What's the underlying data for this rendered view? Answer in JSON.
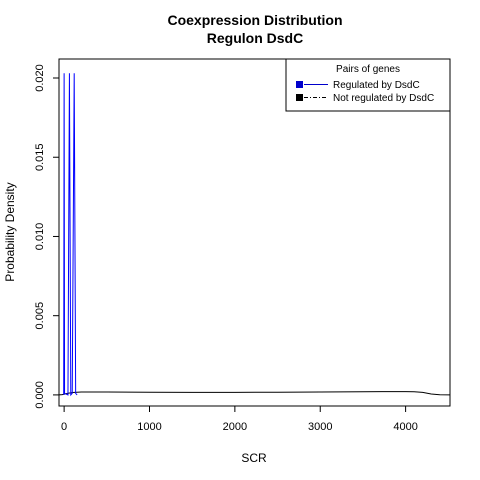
{
  "chart_data": {
    "type": "line",
    "title": "Coexpression Distribution",
    "subtitle": "Regulon DsdC",
    "xlabel": "SCR",
    "ylabel": "Probability Density",
    "xlim": [
      -60,
      4520
    ],
    "ylim": [
      -0.0007,
      0.0212
    ],
    "x_ticks": [
      0,
      1000,
      2000,
      3000,
      4000
    ],
    "x_tick_labels": [
      "0",
      "1000",
      "2000",
      "3000",
      "4000"
    ],
    "y_ticks": [
      0.0,
      0.005,
      0.01,
      0.015,
      0.02
    ],
    "y_tick_labels": [
      "0.000",
      "0.005",
      "0.010",
      "0.015",
      "0.020"
    ],
    "grid": false,
    "legend": {
      "title": "Pairs of genes",
      "position": "top-right",
      "entries": [
        {
          "label": "Regulated  by  DsdC",
          "color": "#0000cc",
          "line_style": "solid"
        },
        {
          "label": "Not regulated  by  DsdC",
          "color": "#000000",
          "line_style": "dashdot"
        }
      ]
    },
    "series": [
      {
        "name": "Regulated  by  DsdC",
        "color": "#0000ff",
        "x": [
          -5,
          0,
          5,
          45,
          62,
          78,
          95,
          118,
          135,
          152
        ],
        "y": [
          0.0,
          0.0203,
          0.0001,
          0.0,
          0.0203,
          0.0,
          0.0001,
          0.0203,
          0.0001,
          0.0
        ]
      },
      {
        "name": "Not regulated  by  DsdC",
        "color": "#000000",
        "x": [
          -60,
          -20,
          0,
          40,
          100,
          200,
          500,
          1000,
          1500,
          2000,
          2500,
          3000,
          3500,
          3800,
          4000,
          4100,
          4200,
          4300,
          4400,
          4520
        ],
        "y": [
          0.0,
          2e-05,
          5e-05,
          0.0001,
          0.00015,
          0.00018,
          0.00018,
          0.00017,
          0.00016,
          0.00016,
          0.00017,
          0.00018,
          0.0002,
          0.00021,
          0.00021,
          0.0002,
          0.00016,
          6e-05,
          1e-05,
          0.0
        ]
      }
    ]
  }
}
